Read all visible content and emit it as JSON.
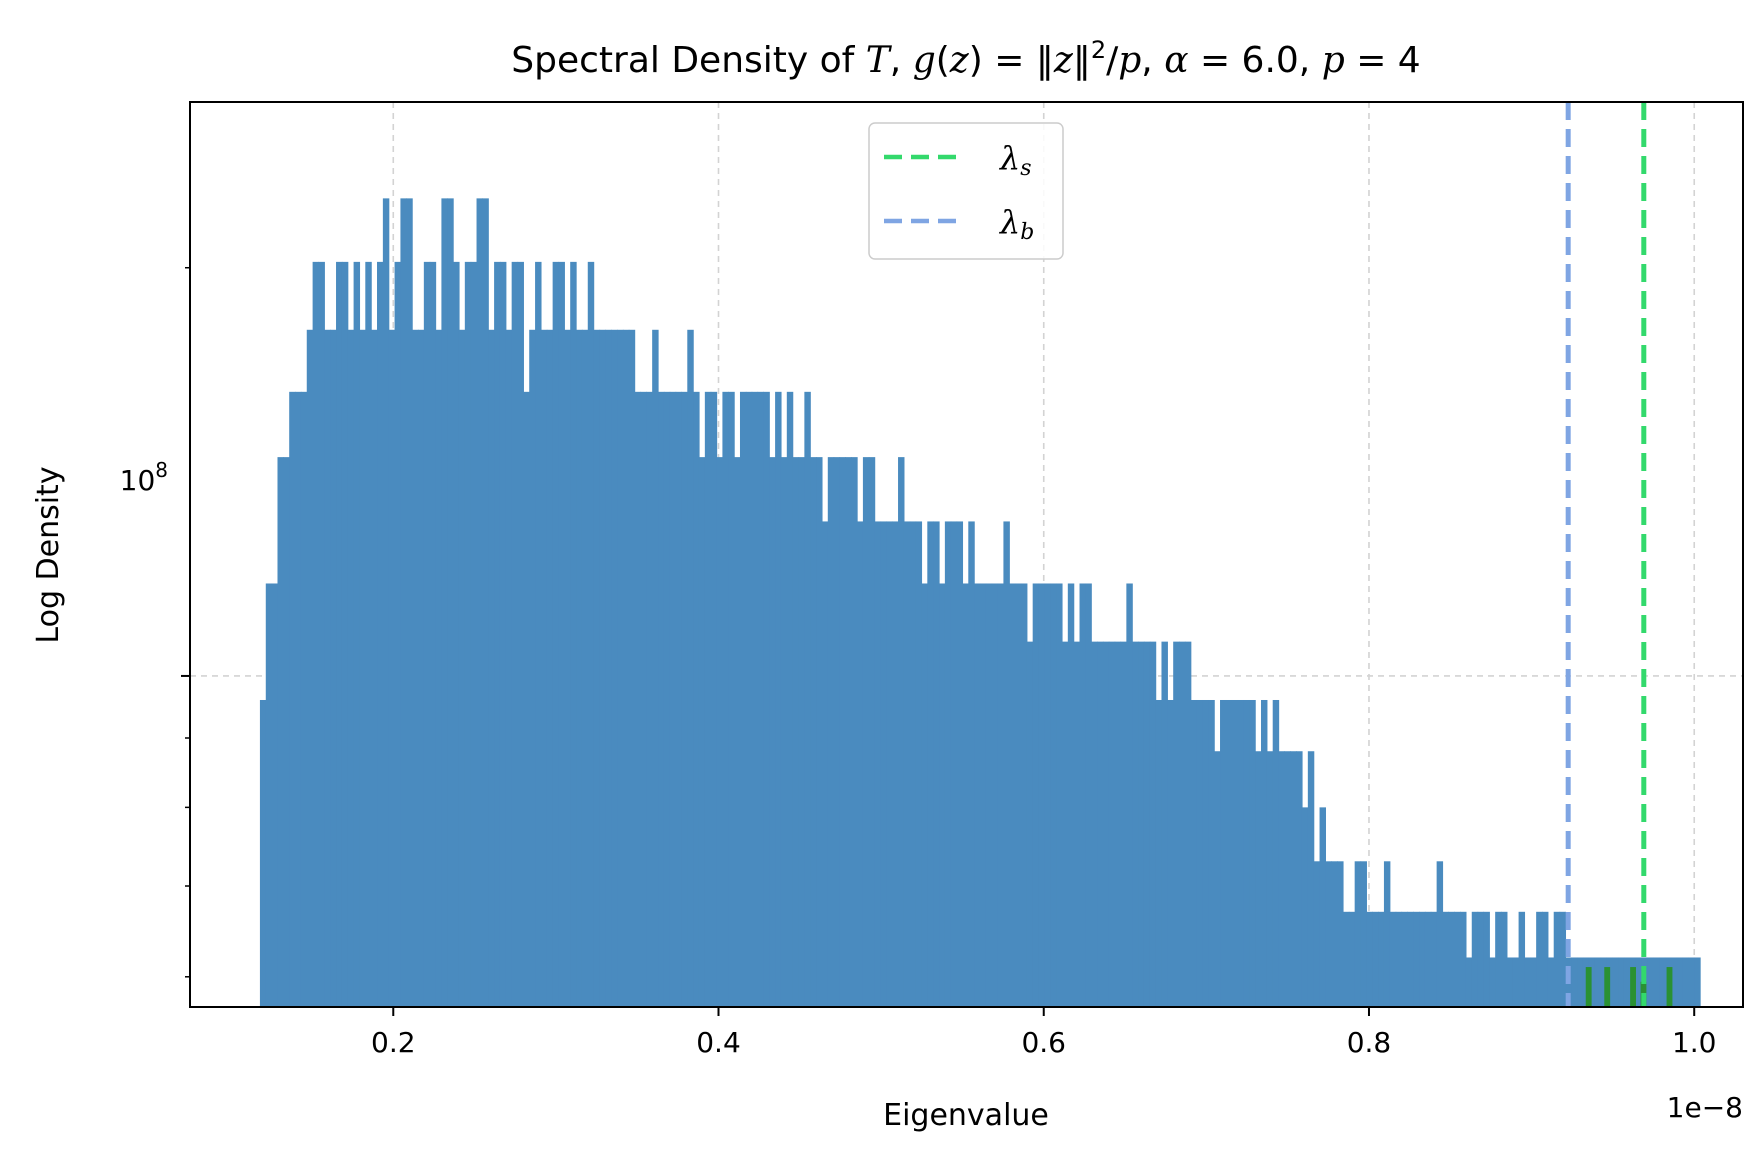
{
  "chart_data": {
    "type": "bar",
    "title": "Spectral Density of T, g(z) = ‖z‖²/p, α = 6.0, p = 4",
    "xlabel": "Eigenvalue",
    "ylabel": "Log Density",
    "x_offset_label": "1e−8",
    "x_scale": 1e-08,
    "xlim": [
      0.075,
      1.03
    ],
    "ylim": [
      57000000,
      265000000
    ],
    "y_scale": "log",
    "x_ticks": [
      0.2,
      0.4,
      0.6,
      0.8,
      1.0
    ],
    "x_tick_labels": [
      "0.2",
      "0.4",
      "0.6",
      "0.8",
      "1.0"
    ],
    "y_major_tick": 100000000,
    "y_major_tick_label": "10^8",
    "y_minor_ticks": [
      60000000,
      70000000,
      80000000,
      90000000,
      200000000
    ],
    "grid": true,
    "legend_position": "top-center",
    "bulk_histogram": {
      "color": "#4a8bbf",
      "bin_start": 0.118,
      "bin_width": 0.0036,
      "level_values": [
        58000000,
        62000000,
        67000000,
        73000000,
        80000000,
        88000000,
        96000000,
        106000000,
        117000000,
        130000000,
        145000000,
        162000000,
        180000000,
        202000000,
        225000000,
        245000000
      ],
      "bin_levels": [
        6,
        8,
        8,
        10,
        10,
        11,
        11,
        11,
        12,
        13,
        13,
        12,
        12,
        13,
        13,
        12,
        13,
        12,
        13,
        12,
        13,
        14,
        12,
        13,
        14,
        14,
        12,
        12,
        13,
        13,
        12,
        14,
        14,
        13,
        12,
        13,
        13,
        14,
        14,
        12,
        13,
        13,
        12,
        13,
        13,
        11,
        12,
        13,
        12,
        12,
        13,
        13,
        12,
        13,
        12,
        12,
        13,
        12,
        12,
        12,
        12,
        12,
        12,
        12,
        11,
        11,
        11,
        12,
        11,
        11,
        11,
        11,
        11,
        12,
        11,
        10,
        11,
        11,
        10,
        11,
        11,
        10,
        11,
        11,
        11,
        11,
        11,
        10,
        11,
        10,
        11,
        10,
        10,
        11,
        10,
        10,
        9,
        10,
        10,
        10,
        10,
        10,
        9,
        10,
        10,
        9,
        9,
        9,
        9,
        10,
        9,
        9,
        9,
        8,
        9,
        9,
        8,
        9,
        9,
        9,
        8,
        9,
        8,
        8,
        8,
        8,
        8,
        9,
        8,
        8,
        8,
        7,
        8,
        8,
        8,
        8,
        8,
        7,
        8,
        7,
        8,
        8,
        7,
        7,
        7,
        7,
        7,
        7,
        8,
        7,
        7,
        7,
        7,
        6,
        7,
        6,
        7,
        7,
        7,
        6,
        6,
        6,
        6,
        5,
        6,
        6,
        6,
        6,
        6,
        6,
        5,
        6,
        5,
        6,
        5,
        5,
        5,
        5,
        4,
        5,
        3,
        4,
        3,
        3,
        3,
        2,
        2,
        3,
        3,
        2,
        2,
        2,
        3,
        2,
        2,
        2,
        2,
        2,
        2,
        2,
        2,
        3,
        2,
        2,
        2,
        2,
        1,
        2,
        2,
        2,
        1,
        2,
        2,
        1,
        1,
        2,
        1,
        1,
        2,
        2,
        1,
        2,
        2,
        1,
        1,
        1,
        1,
        1,
        1,
        1,
        1,
        1,
        1,
        1,
        1,
        1,
        1,
        1,
        1,
        1,
        1,
        1,
        1,
        1,
        1,
        1
      ]
    },
    "outlier_bars": {
      "color": "#2a9132",
      "x": [
        0.9351,
        0.9465,
        0.9624,
        0.9688,
        0.9848
      ],
      "values": [
        61000000,
        61000000,
        61000000,
        59500000,
        61000000
      ]
    },
    "lines": [
      {
        "name": "λs",
        "x": 0.969,
        "color": "#33d96c"
      },
      {
        "name": "λb",
        "x": 0.9225,
        "color": "#7fa5e3"
      }
    ]
  }
}
